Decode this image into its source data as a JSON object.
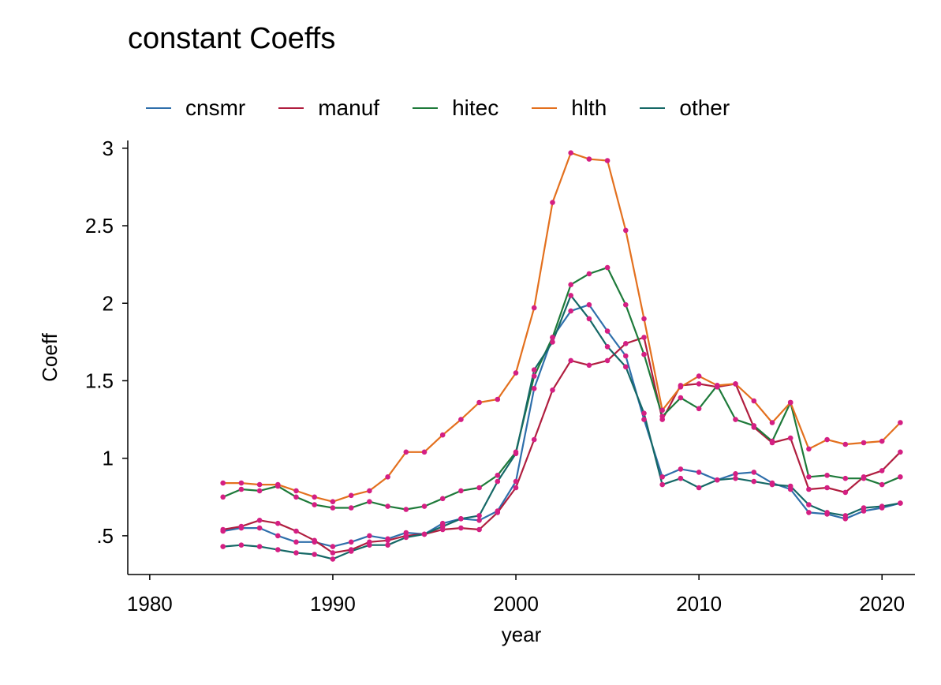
{
  "chart_data": {
    "type": "line",
    "title": "constant Coeffs",
    "xlabel": "year",
    "ylabel": "Coeff",
    "xlim": [
      1978.8,
      2021.8
    ],
    "ylim": [
      0.25,
      3.05
    ],
    "xticks": [
      1980,
      1990,
      2000,
      2010,
      2020
    ],
    "xtick_labels": [
      "1980",
      "1990",
      "2000",
      "2010",
      "2020"
    ],
    "yticks": [
      0.5,
      1,
      1.5,
      2,
      2.5,
      3
    ],
    "ytick_labels": [
      ".5",
      "1",
      "1.5",
      "2",
      "2.5",
      "3"
    ],
    "grid": false,
    "legend_position": "top-left",
    "marker_color": "#d41f83",
    "x": [
      1984,
      1985,
      1986,
      1987,
      1988,
      1989,
      1990,
      1991,
      1992,
      1993,
      1994,
      1995,
      1996,
      1997,
      1998,
      1999,
      2000,
      2001,
      2002,
      2003,
      2004,
      2005,
      2006,
      2007,
      2008,
      2009,
      2010,
      2011,
      2012,
      2013,
      2014,
      2015,
      2016,
      2017,
      2018,
      2019,
      2020,
      2021
    ],
    "series": [
      {
        "name": "cnsmr",
        "color": "#2f6fab",
        "values": [
          0.53,
          0.55,
          0.55,
          0.5,
          0.46,
          0.46,
          0.43,
          0.46,
          0.5,
          0.48,
          0.52,
          0.51,
          0.58,
          0.61,
          0.6,
          0.66,
          0.85,
          1.45,
          1.78,
          1.95,
          1.99,
          1.82,
          1.66,
          1.25,
          0.88,
          0.93,
          0.91,
          0.86,
          0.9,
          0.91,
          0.84,
          0.8,
          0.65,
          0.64,
          0.61,
          0.66,
          0.68,
          0.71
        ]
      },
      {
        "name": "manuf",
        "color": "#b01e3f",
        "values": [
          0.54,
          0.56,
          0.6,
          0.58,
          0.53,
          0.47,
          0.39,
          0.41,
          0.46,
          0.47,
          0.5,
          0.51,
          0.54,
          0.55,
          0.54,
          0.65,
          0.81,
          1.12,
          1.44,
          1.63,
          1.6,
          1.63,
          1.74,
          1.78,
          1.25,
          1.47,
          1.48,
          1.46,
          1.48,
          1.2,
          1.1,
          1.13,
          0.8,
          0.81,
          0.78,
          0.88,
          0.92,
          1.04
        ]
      },
      {
        "name": "hitec",
        "color": "#1e7a3a",
        "values": [
          0.75,
          0.8,
          0.79,
          0.82,
          0.75,
          0.7,
          0.68,
          0.68,
          0.72,
          0.69,
          0.67,
          0.69,
          0.74,
          0.79,
          0.81,
          0.89,
          1.04,
          1.53,
          1.78,
          2.12,
          2.19,
          2.23,
          1.99,
          1.67,
          1.27,
          1.39,
          1.32,
          1.47,
          1.25,
          1.21,
          1.11,
          1.36,
          0.88,
          0.89,
          0.87,
          0.87,
          0.83,
          0.88
        ]
      },
      {
        "name": "hlth",
        "color": "#e3701e",
        "values": [
          0.84,
          0.84,
          0.83,
          0.83,
          0.79,
          0.75,
          0.72,
          0.76,
          0.79,
          0.88,
          1.04,
          1.04,
          1.15,
          1.25,
          1.36,
          1.38,
          1.55,
          1.97,
          2.65,
          2.97,
          2.93,
          2.92,
          2.47,
          1.9,
          1.31,
          1.46,
          1.53,
          1.47,
          1.48,
          1.37,
          1.23,
          1.36,
          1.06,
          1.12,
          1.09,
          1.1,
          1.11,
          1.23
        ]
      },
      {
        "name": "other",
        "color": "#156866",
        "values": [
          0.43,
          0.44,
          0.43,
          0.41,
          0.39,
          0.38,
          0.35,
          0.4,
          0.44,
          0.44,
          0.49,
          0.51,
          0.56,
          0.61,
          0.63,
          0.85,
          1.03,
          1.57,
          1.75,
          2.05,
          1.9,
          1.72,
          1.59,
          1.29,
          0.83,
          0.87,
          0.81,
          0.86,
          0.87,
          0.85,
          0.83,
          0.82,
          0.7,
          0.65,
          0.63,
          0.68,
          0.69,
          0.71
        ]
      }
    ]
  }
}
